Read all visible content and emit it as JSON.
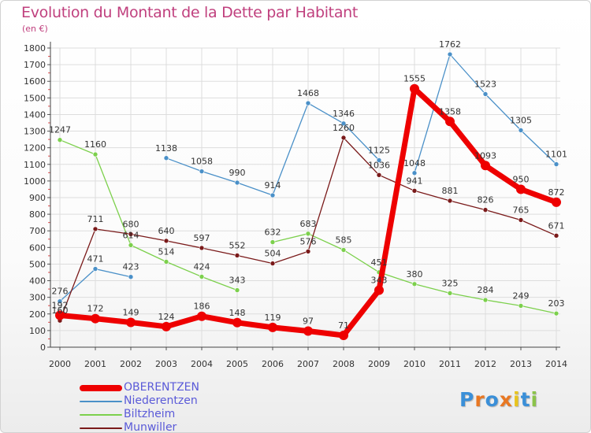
{
  "title": "Evolution du Montant de la Dette par Habitant",
  "subtitle": "(en €)",
  "logo": {
    "letters": [
      "P",
      "r",
      "o",
      "x",
      "i",
      "t",
      "i"
    ],
    "colors": [
      "#3a8fd8",
      "#e87722",
      "#3a8fd8",
      "#e87722",
      "#e8c41e",
      "#3a8fd8",
      "#8bc34a"
    ]
  },
  "chart_data": {
    "type": "line",
    "title": "Evolution du Montant de la Dette par Habitant",
    "subtitle": "(en €)",
    "xlabel": "",
    "ylabel": "",
    "ylim": [
      0,
      1800
    ],
    "y_ticks": [
      0,
      100,
      200,
      300,
      400,
      500,
      600,
      700,
      800,
      900,
      1000,
      1100,
      1200,
      1300,
      1400,
      1500,
      1600,
      1700,
      1800
    ],
    "categories": [
      "2000",
      "2001",
      "2002",
      "2003",
      "2004",
      "2005",
      "2006",
      "2007",
      "2008",
      "2009",
      "2010",
      "2011",
      "2012",
      "2013",
      "2014"
    ],
    "grid": true,
    "legend": "bottom-left",
    "series": [
      {
        "name": "OBERENTZEN",
        "color": "#ee0000",
        "values": [
          192,
          172,
          149,
          124,
          186,
          148,
          119,
          97,
          71,
          343,
          1555,
          1358,
          1093,
          950,
          872
        ],
        "labels": [
          "192",
          "172",
          "149",
          "124",
          "186",
          "148",
          "119",
          "97",
          "71",
          "343",
          "1555",
          "1358",
          "1093",
          "950",
          "872"
        ],
        "break_after": []
      },
      {
        "name": "Niederentzen",
        "color": "#4a90c8",
        "values": [
          276,
          471,
          423,
          1138,
          1058,
          990,
          914,
          1468,
          1346,
          1125,
          1048,
          1762,
          1523,
          1305,
          1101
        ],
        "labels": [
          "276",
          "471",
          "423",
          "1138",
          "1058",
          "990",
          "914",
          "1468",
          "1346",
          "1125",
          "1048",
          "1762",
          "1523",
          "1305",
          "1101"
        ],
        "break_after": [
          2,
          9
        ]
      },
      {
        "name": "Biltzheim",
        "color": "#7cd04c",
        "values": [
          1247,
          1160,
          614,
          514,
          424,
          343,
          632,
          683,
          585,
          451,
          380,
          325,
          284,
          249,
          203
        ],
        "labels": [
          "1247",
          "1160",
          "614",
          "514",
          "424",
          "343",
          "632",
          "683",
          "585",
          "451",
          "380",
          "325",
          "284",
          "249",
          "203"
        ],
        "break_after": [
          5
        ]
      },
      {
        "name": "Munwiller",
        "color": "#7a1a1a",
        "values": [
          160,
          711,
          680,
          640,
          597,
          552,
          504,
          576,
          1260,
          1036,
          941,
          881,
          826,
          765,
          671
        ],
        "labels": [
          "160",
          "711",
          "680",
          "640",
          "597",
          "552",
          "504",
          "576",
          "1260",
          "1036",
          "941",
          "881",
          "826",
          "765",
          "671"
        ],
        "break_after": []
      }
    ]
  }
}
